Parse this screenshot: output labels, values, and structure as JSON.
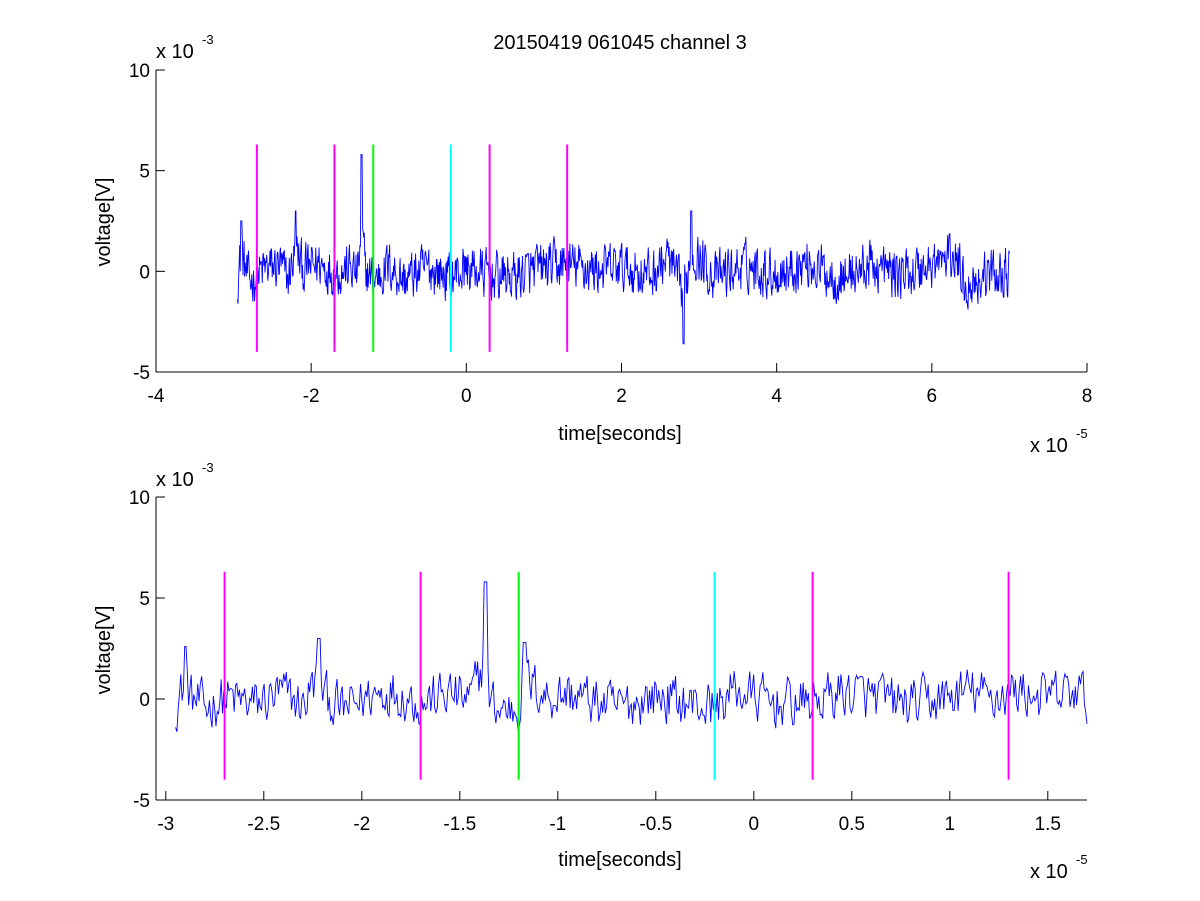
{
  "chart_data": [
    {
      "type": "line",
      "title": "20150419 061045 channel 3",
      "xlabel": "time[seconds]",
      "ylabel": "voltage[V]",
      "x_multiplier_base": "x 10",
      "x_multiplier_exp": "-5",
      "y_multiplier_base": "x 10",
      "y_multiplier_exp": "-3",
      "xlim": [
        -4,
        8
      ],
      "ylim": [
        -5,
        10
      ],
      "x_ticks": [
        -4,
        -2,
        0,
        2,
        4,
        6,
        8
      ],
      "x_tick_labels": [
        "-4",
        "-2",
        "0",
        "2",
        "4",
        "6",
        "8"
      ],
      "y_ticks": [
        -5,
        0,
        5,
        10
      ],
      "y_tick_labels": [
        "-5",
        "0",
        "5",
        "10"
      ],
      "grid": false,
      "box": "left-bottom axes only",
      "series": [
        {
          "color": "#0000ff",
          "x_range": [
            -2.95,
            7.0
          ],
          "description_points": [
            [
              -2.95,
              -1.0
            ],
            [
              -2.9,
              2.5
            ],
            [
              -2.85,
              0.5
            ],
            [
              -2.8,
              -1.5
            ],
            [
              -2.6,
              0.3
            ],
            [
              -2.4,
              0.8
            ],
            [
              -2.3,
              -1.2
            ],
            [
              -2.2,
              3.0
            ],
            [
              -2.1,
              0.2
            ],
            [
              -1.9,
              1.2
            ],
            [
              -1.7,
              -0.3
            ],
            [
              -1.5,
              0.5
            ],
            [
              -1.4,
              -0.5
            ],
            [
              -1.35,
              5.8
            ],
            [
              -1.3,
              0.2
            ],
            [
              -1.2,
              -1.3
            ],
            [
              -1.0,
              0.8
            ],
            [
              -0.8,
              -1.2
            ],
            [
              -0.5,
              0.5
            ],
            [
              -0.2,
              -0.8
            ],
            [
              0.0,
              0.5
            ],
            [
              0.3,
              -0.6
            ],
            [
              0.6,
              -0.8
            ],
            [
              1.0,
              0.6
            ],
            [
              1.3,
              0.9
            ],
            [
              1.6,
              0.3
            ],
            [
              2.0,
              0.5
            ],
            [
              2.4,
              -0.5
            ],
            [
              2.6,
              2.0
            ],
            [
              2.8,
              -3.6
            ],
            [
              2.9,
              3.0
            ],
            [
              3.2,
              -0.8
            ],
            [
              3.6,
              0.8
            ],
            [
              4.0,
              -0.3
            ],
            [
              4.4,
              1.2
            ],
            [
              4.8,
              -1.0
            ],
            [
              5.2,
              0.8
            ],
            [
              5.6,
              -0.5
            ],
            [
              6.0,
              0.9
            ],
            [
              6.3,
              2.2
            ],
            [
              6.45,
              -2.0
            ],
            [
              6.7,
              -0.4
            ],
            [
              7.0,
              -0.2
            ]
          ]
        }
      ],
      "vertical_markers": [
        {
          "x": -2.7,
          "color": "#ff00ff",
          "y_range": [
            -4,
            6.3
          ]
        },
        {
          "x": -1.7,
          "color": "#ff00ff",
          "y_range": [
            -4,
            6.3
          ]
        },
        {
          "x": -1.2,
          "color": "#00ff00",
          "y_range": [
            -4,
            6.3
          ]
        },
        {
          "x": -0.2,
          "color": "#00ffff",
          "y_range": [
            -4,
            6.3
          ]
        },
        {
          "x": 0.3,
          "color": "#ff00ff",
          "y_range": [
            -4,
            6.3
          ]
        },
        {
          "x": 1.3,
          "color": "#ff00ff",
          "y_range": [
            -4,
            6.3
          ]
        }
      ]
    },
    {
      "type": "line",
      "xlabel": "time[seconds]",
      "ylabel": "voltage[V]",
      "x_multiplier_base": "x 10",
      "x_multiplier_exp": "-5",
      "y_multiplier_base": "x 10",
      "y_multiplier_exp": "-3",
      "xlim": [
        -3.05,
        1.7
      ],
      "ylim": [
        -5,
        10
      ],
      "x_ticks": [
        -3,
        -2.5,
        -2,
        -1.5,
        -1,
        -0.5,
        0,
        0.5,
        1,
        1.5
      ],
      "x_tick_labels": [
        "-3",
        "-2.5",
        "-2",
        "-1.5",
        "-1",
        "-0.5",
        "0",
        "0.5",
        "1",
        "1.5"
      ],
      "y_ticks": [
        -5,
        0,
        5,
        10
      ],
      "y_tick_labels": [
        "-5",
        "0",
        "5",
        "10"
      ],
      "grid": false,
      "box": "left-bottom axes only",
      "series": [
        {
          "color": "#0000ff",
          "x_range": [
            -2.95,
            1.7
          ],
          "description_points": [
            [
              -2.95,
              -1.0
            ],
            [
              -2.92,
              1.0
            ],
            [
              -2.9,
              2.6
            ],
            [
              -2.87,
              0.2
            ],
            [
              -2.8,
              -1.3
            ],
            [
              -2.7,
              0.2
            ],
            [
              -2.55,
              -0.8
            ],
            [
              -2.4,
              0.8
            ],
            [
              -2.3,
              -1.0
            ],
            [
              -2.25,
              2.0
            ],
            [
              -2.22,
              3.0
            ],
            [
              -2.18,
              0.2
            ],
            [
              -2.1,
              -1.6
            ],
            [
              -1.95,
              0.6
            ],
            [
              -1.85,
              1.3
            ],
            [
              -1.7,
              -0.5
            ],
            [
              -1.55,
              0.8
            ],
            [
              -1.45,
              -0.3
            ],
            [
              -1.37,
              5.8
            ],
            [
              -1.35,
              0.0
            ],
            [
              -1.3,
              -1.5
            ],
            [
              -1.2,
              -1.2
            ],
            [
              -1.17,
              2.8
            ],
            [
              -1.05,
              0.3
            ],
            [
              -0.95,
              0.8
            ],
            [
              -0.7,
              -1.3
            ],
            [
              -0.5,
              0.5
            ],
            [
              -0.3,
              -0.8
            ],
            [
              -0.2,
              -1.0
            ],
            [
              -0.1,
              1.2
            ],
            [
              0.1,
              -0.6
            ],
            [
              0.3,
              -0.5
            ],
            [
              0.45,
              1.0
            ],
            [
              0.6,
              0.3
            ],
            [
              0.8,
              -0.8
            ],
            [
              1.0,
              0.2
            ],
            [
              1.1,
              1.2
            ],
            [
              1.2,
              0.2
            ],
            [
              1.35,
              1.2
            ],
            [
              1.5,
              0.2
            ],
            [
              1.65,
              1.0
            ],
            [
              1.7,
              -0.1
            ]
          ]
        }
      ],
      "vertical_markers": [
        {
          "x": -2.7,
          "color": "#ff00ff",
          "y_range": [
            -4,
            6.3
          ]
        },
        {
          "x": -1.7,
          "color": "#ff00ff",
          "y_range": [
            -4,
            6.3
          ]
        },
        {
          "x": -1.2,
          "color": "#00ff00",
          "y_range": [
            -4,
            6.3
          ]
        },
        {
          "x": -0.2,
          "color": "#00ffff",
          "y_range": [
            -4,
            6.3
          ]
        },
        {
          "x": 0.3,
          "color": "#ff00ff",
          "y_range": [
            -4,
            6.3
          ]
        },
        {
          "x": 1.3,
          "color": "#ff00ff",
          "y_range": [
            -4,
            6.3
          ]
        }
      ]
    }
  ]
}
